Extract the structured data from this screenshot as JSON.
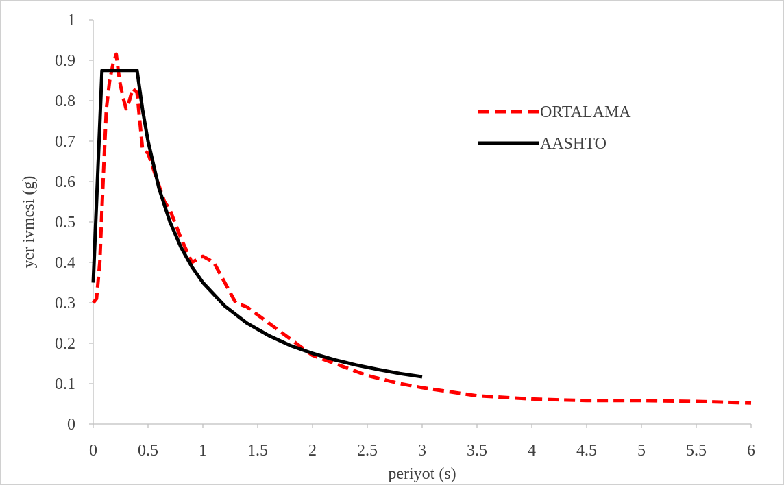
{
  "chart_data": {
    "type": "line",
    "xlabel": "periyot (s)",
    "ylabel": "yer ivmesi (g)",
    "xlim": [
      0,
      6
    ],
    "ylim": [
      0,
      1
    ],
    "x_ticks": [
      "0",
      "0.5",
      "1",
      "1.5",
      "2",
      "2.5",
      "3",
      "3.5",
      "4",
      "4.5",
      "5",
      "5.5",
      "6"
    ],
    "y_ticks": [
      "0",
      "0.1",
      "0.2",
      "0.3",
      "0.4",
      "0.5",
      "0.6",
      "0.7",
      "0.8",
      "0.9",
      "1"
    ],
    "grid": false,
    "legend_position": "top-right",
    "series": [
      {
        "name": "ORTALAMA",
        "color": "#ff0000",
        "style": "dashed",
        "x": [
          0,
          0.03,
          0.06,
          0.09,
          0.12,
          0.15,
          0.18,
          0.21,
          0.24,
          0.27,
          0.3,
          0.33,
          0.36,
          0.4,
          0.45,
          0.5,
          0.55,
          0.6,
          0.65,
          0.7,
          0.8,
          0.9,
          1.0,
          1.1,
          1.2,
          1.3,
          1.4,
          1.5,
          1.6,
          1.8,
          2.0,
          2.2,
          2.5,
          2.8,
          3.0,
          3.5,
          4.0,
          4.5,
          5.0,
          5.5,
          6.0
        ],
        "values": [
          0.3,
          0.31,
          0.4,
          0.6,
          0.78,
          0.85,
          0.89,
          0.915,
          0.85,
          0.81,
          0.78,
          0.8,
          0.83,
          0.82,
          0.68,
          0.67,
          0.63,
          0.59,
          0.55,
          0.53,
          0.46,
          0.4,
          0.415,
          0.4,
          0.35,
          0.3,
          0.29,
          0.27,
          0.25,
          0.21,
          0.17,
          0.15,
          0.12,
          0.1,
          0.09,
          0.07,
          0.062,
          0.058,
          0.058,
          0.056,
          0.052
        ]
      },
      {
        "name": "AASHTO",
        "color": "#000000",
        "style": "solid",
        "x": [
          0,
          0.08,
          0.4,
          0.45,
          0.5,
          0.6,
          0.7,
          0.8,
          0.9,
          1.0,
          1.2,
          1.4,
          1.6,
          1.8,
          2.0,
          2.2,
          2.4,
          2.6,
          2.8,
          3.0
        ],
        "values": [
          0.35,
          0.875,
          0.875,
          0.778,
          0.7,
          0.583,
          0.5,
          0.4375,
          0.389,
          0.35,
          0.292,
          0.25,
          0.219,
          0.194,
          0.175,
          0.159,
          0.146,
          0.135,
          0.125,
          0.117
        ]
      }
    ]
  }
}
